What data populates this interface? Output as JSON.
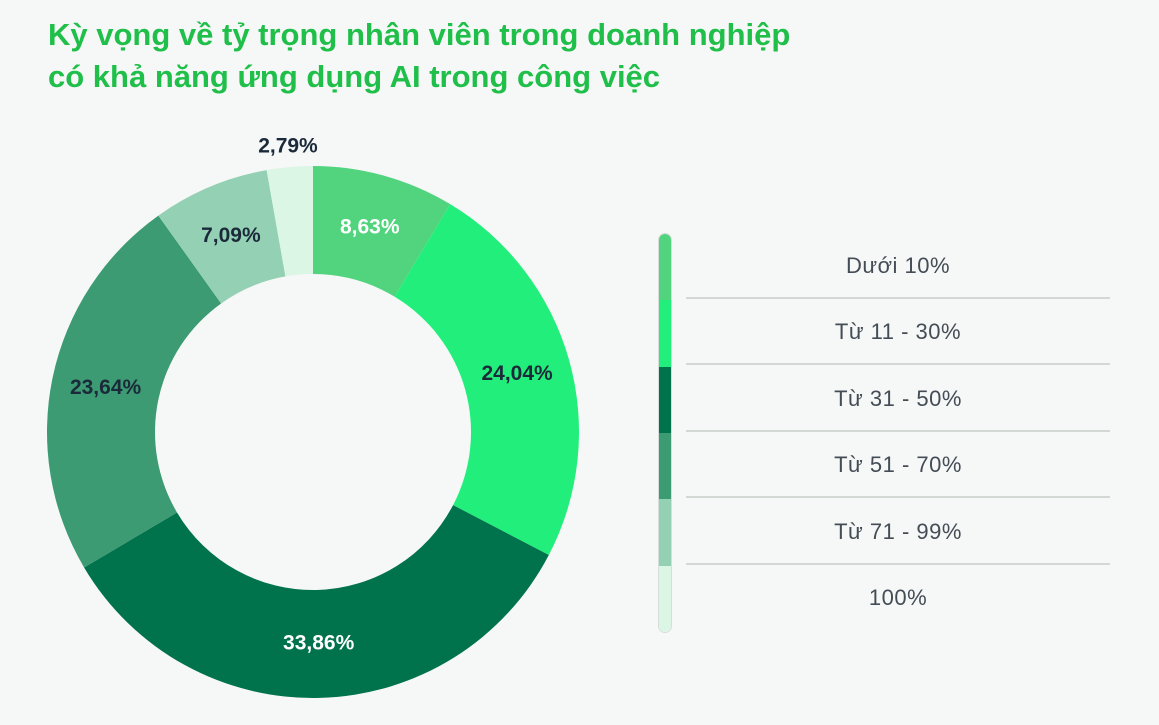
{
  "chart_data": {
    "type": "pie",
    "title_lines": [
      "Kỳ vọng về tỷ trọng nhân viên trong doanh nghiệp",
      "có khả năng ứng dụng AI trong công việc"
    ],
    "categories": [
      "Dưới 10%",
      "Từ 11 - 30%",
      "Từ 31 - 50%",
      "Từ 51 - 70%",
      "Từ 71 - 99%",
      "100%"
    ],
    "values": [
      8.63,
      24.04,
      33.86,
      23.64,
      7.09,
      2.79
    ],
    "data_labels": [
      "8,63%",
      "24,04%",
      "33,86%",
      "23,64%",
      "7,09%",
      "2,79%"
    ],
    "colors": [
      "#52d47f",
      "#22ef7b",
      "#00724c",
      "#3c9b73",
      "#94d1b4",
      "#dcf6e6"
    ],
    "label_colors": [
      "#ffffff",
      "#1b2a3a",
      "#ffffff",
      "#1b2a3a",
      "#1b2a3a",
      "#1b2a3a"
    ],
    "donut": true,
    "legend_position": "right"
  }
}
